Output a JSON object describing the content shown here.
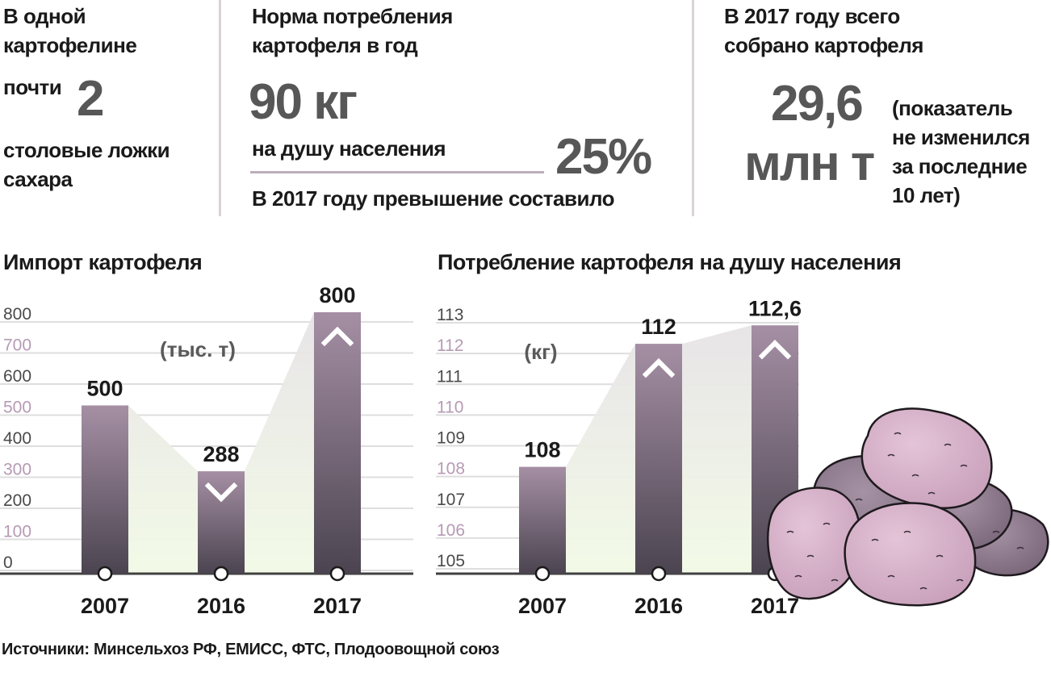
{
  "facts": {
    "sugar": {
      "line1": "В одной",
      "line2": "картофелине",
      "prefix": "почти",
      "value": "2",
      "line3": "столовые ложки",
      "line4": "сахара"
    },
    "norm": {
      "title1": "Норма потребления",
      "title2": "картофеля в год",
      "value": "90 кг",
      "unit": "на душу населения",
      "excess_label": "В 2017 году превышение составило",
      "excess_value": "25%"
    },
    "harvest": {
      "title1": "В 2017 году всего",
      "title2": "собрано картофеля",
      "value1": "29,6",
      "value2": "млн т",
      "note1": "(показатель",
      "note2": "не изменился",
      "note3": "за последние",
      "note4": "10 лет)"
    }
  },
  "colors": {
    "bar_top": "#a58fa4",
    "bar_bottom": "#4b4450",
    "grid": "#dedede",
    "axis_dark": "#404040",
    "tick_odd": "#4a4a4a",
    "tick_even": "#b69ab4",
    "potato": "#d9b4cc",
    "potato_dark": "#8f7a8f"
  },
  "chart_data": [
    {
      "type": "bar",
      "title": "Импорт картофеля",
      "unit": "(тыс. т)",
      "categories": [
        "2007",
        "2016",
        "2017"
      ],
      "values": [
        500,
        288,
        800
      ],
      "value_labels": [
        "500",
        "288",
        "800"
      ],
      "trends": [
        "none",
        "down",
        "up"
      ],
      "ylim": [
        0,
        800
      ],
      "ytick_labels": [
        "0",
        "100",
        "200",
        "300",
        "400",
        "500",
        "600",
        "700",
        "800"
      ],
      "grid": true
    },
    {
      "type": "bar",
      "title": "Потребление картофеля на душу населения",
      "unit": "(кг)",
      "categories": [
        "2007",
        "2016",
        "2017"
      ],
      "values": [
        108,
        112,
        112.6
      ],
      "value_labels": [
        "108",
        "112",
        "112,6"
      ],
      "trends": [
        "none",
        "up",
        "up"
      ],
      "ylim": [
        105,
        113
      ],
      "ytick_labels": [
        "105",
        "106",
        "107",
        "108",
        "109",
        "110",
        "111",
        "112",
        "113"
      ],
      "grid": true
    }
  ],
  "source": "Источники: Минсельхоз РФ, ЕМИСС, ФТС, Плодоовощной союз"
}
